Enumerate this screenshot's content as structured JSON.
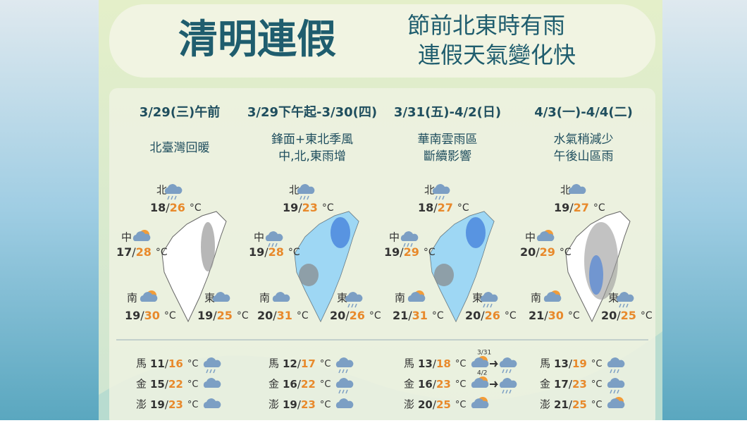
{
  "header": {
    "title": "清明連假",
    "subtitle": [
      "節前北東時有雨",
      "連假天氣變化快"
    ]
  },
  "separator": "/",
  "unit": "°C",
  "columns": [
    {
      "date": "3/29(三)午前",
      "description": [
        "北臺灣回暖"
      ],
      "map": "dry",
      "regions": [
        {
          "name": "北",
          "low": 18,
          "high": 26,
          "icon": "rain"
        },
        {
          "name": "中",
          "low": 17,
          "high": 28,
          "icon": "sun-cloud"
        },
        {
          "name": "南",
          "low": 19,
          "high": 30,
          "icon": "sun-cloud"
        },
        {
          "name": "東",
          "low": 19,
          "high": 25,
          "icon": "cloud"
        }
      ],
      "islands": [
        {
          "name": "馬",
          "low": 11,
          "high": 16,
          "icon": "rain"
        },
        {
          "name": "金",
          "low": 15,
          "high": 22,
          "icon": "cloud"
        },
        {
          "name": "澎",
          "low": 19,
          "high": 23,
          "icon": "cloud"
        }
      ]
    },
    {
      "date": "3/29下午起-3/30(四)",
      "description": [
        "鋒面+東北季風",
        "中,北,東雨增"
      ],
      "map": "wet",
      "regions": [
        {
          "name": "北",
          "low": 19,
          "high": 23,
          "icon": "rain"
        },
        {
          "name": "中",
          "low": 19,
          "high": 28,
          "icon": "rain"
        },
        {
          "name": "南",
          "low": 20,
          "high": 31,
          "icon": "cloud"
        },
        {
          "name": "東",
          "low": 20,
          "high": 26,
          "icon": "rain"
        }
      ],
      "islands": [
        {
          "name": "馬",
          "low": 12,
          "high": 17,
          "icon": "rain"
        },
        {
          "name": "金",
          "low": 16,
          "high": 22,
          "icon": "rain"
        },
        {
          "name": "澎",
          "low": 19,
          "high": 23,
          "icon": "cloud"
        }
      ]
    },
    {
      "date": "3/31(五)-4/2(日)",
      "description": [
        "華南雲雨區",
        "斷續影響"
      ],
      "map": "wet",
      "regions": [
        {
          "name": "北",
          "low": 18,
          "high": 27,
          "icon": "rain"
        },
        {
          "name": "中",
          "low": 19,
          "high": 29,
          "icon": "rain"
        },
        {
          "name": "南",
          "low": 21,
          "high": 31,
          "icon": "sun-cloud"
        },
        {
          "name": "東",
          "low": 20,
          "high": 26,
          "icon": "rain"
        }
      ],
      "islands": [
        {
          "name": "馬",
          "low": 13,
          "high": 18,
          "icon": "sun-cloud",
          "note": "3/31"
        },
        {
          "name": "金",
          "low": 16,
          "high": 23,
          "icon": "sun-cloud",
          "note": "4/2"
        },
        {
          "name": "澎",
          "low": 20,
          "high": 25,
          "icon": "sun-cloud"
        }
      ]
    },
    {
      "date": "4/3(一)-4/4(二)",
      "description": [
        "水氣稍減少",
        "午後山區雨"
      ],
      "map": "light",
      "regions": [
        {
          "name": "北",
          "low": 19,
          "high": 27,
          "icon": "cloud"
        },
        {
          "name": "中",
          "low": 20,
          "high": 29,
          "icon": "sun-cloud"
        },
        {
          "name": "南",
          "low": 21,
          "high": 30,
          "icon": "sun-cloud"
        },
        {
          "name": "東",
          "low": 20,
          "high": 25,
          "icon": "rain"
        }
      ],
      "islands": [
        {
          "name": "馬",
          "low": 13,
          "high": 19,
          "icon": "rain"
        },
        {
          "name": "金",
          "low": 17,
          "high": 23,
          "icon": "rain"
        },
        {
          "name": "澎",
          "low": 21,
          "high": 25,
          "icon": "sun-cloud"
        }
      ]
    }
  ]
}
